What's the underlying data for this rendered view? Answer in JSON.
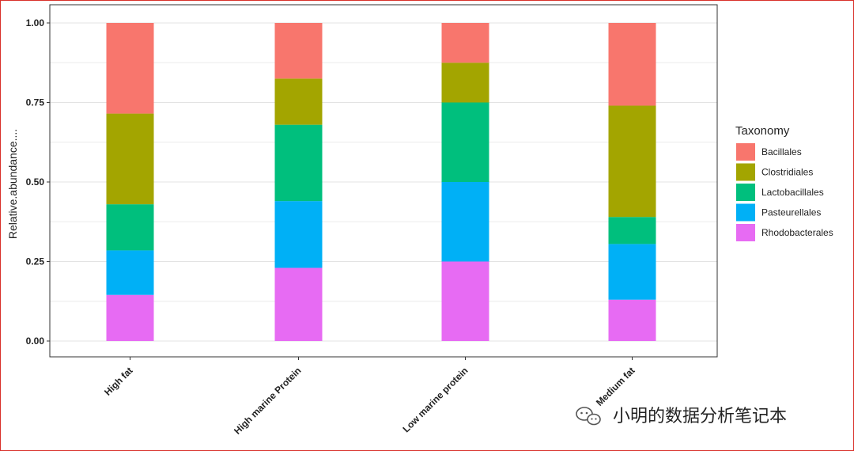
{
  "chart_data": {
    "type": "bar",
    "stacked": true,
    "categories": [
      "High fat",
      "High marine Protein",
      "Low marine protein",
      "Medium fat"
    ],
    "series": [
      {
        "name": "Bacillales",
        "color": "#F8766D",
        "values": [
          0.285,
          0.175,
          0.125,
          0.26
        ]
      },
      {
        "name": "Clostridiales",
        "color": "#A3A500",
        "values": [
          0.285,
          0.145,
          0.125,
          0.35
        ]
      },
      {
        "name": "Lactobacillales",
        "color": "#00BF7D",
        "values": [
          0.145,
          0.24,
          0.25,
          0.085
        ]
      },
      {
        "name": "Pasteurellales",
        "color": "#00B0F6",
        "values": [
          0.14,
          0.21,
          0.25,
          0.175
        ]
      },
      {
        "name": "Rhodobacterales",
        "color": "#E76BF3",
        "values": [
          0.145,
          0.23,
          0.25,
          0.13
        ]
      }
    ],
    "ylabel": "Relative.abundance....",
    "ylim": [
      0,
      1.05
    ],
    "yticks": [
      "0.00",
      "0.25",
      "0.50",
      "0.75",
      "1.00"
    ],
    "grid": true,
    "legend": {
      "title": "Taxonomy",
      "position": "right"
    }
  },
  "watermark": {
    "text": "小明的数据分析笔记本",
    "icon": "wechat-icon"
  }
}
